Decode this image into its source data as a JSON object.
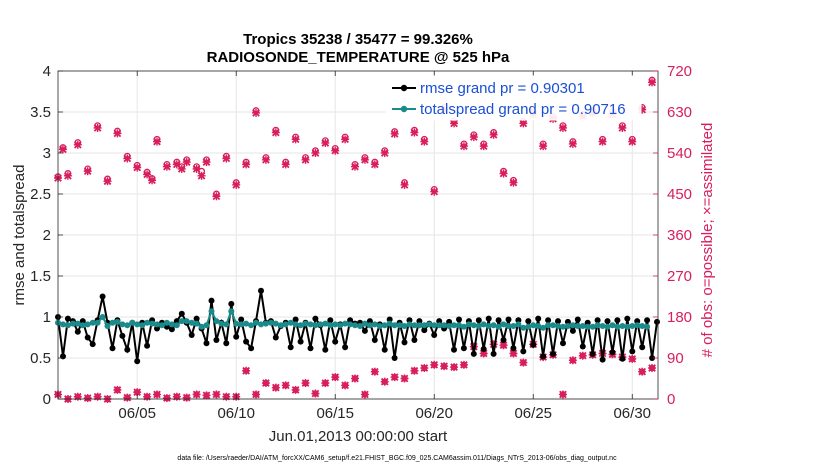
{
  "chart_data": {
    "type": "line",
    "title": "Tropics 35238 / 35477 = 99.326%",
    "subtitle": "RADIOSONDE_TEMPERATURE @ 525 hPa",
    "xlabel": "Jun.01,2013 00:00:00 start",
    "ylabel": "rmse and totalspread",
    "y2label": "# of obs: o=possible; ×=assimilated",
    "footnote": "data file: /Users/raeder/DAI/ATM_forcXX/CAM6_setup/f.e21.FHIST_BGC.f09_025.CAM6assim.011/Diags_NTrS_2013-06/obs_diag_output.nc",
    "xlim": [
      1,
      31.3
    ],
    "ylim": [
      0,
      4
    ],
    "y2lim": [
      0,
      720
    ],
    "x_ticks": [
      5,
      10,
      15,
      20,
      25,
      30
    ],
    "x_tick_labels": [
      "06/05",
      "06/10",
      "06/15",
      "06/20",
      "06/25",
      "06/30"
    ],
    "y_ticks": [
      0,
      0.5,
      1,
      1.5,
      2,
      2.5,
      3,
      3.5,
      4
    ],
    "y_tick_labels": [
      "0",
      "0.5",
      "1",
      "1.5",
      "2",
      "2.5",
      "3",
      "3.5",
      "4"
    ],
    "y2_ticks": [
      0,
      90,
      180,
      270,
      360,
      450,
      540,
      630,
      720
    ],
    "y2_tick_labels": [
      "0",
      "90",
      "180",
      "270",
      "360",
      "450",
      "540",
      "630",
      "720"
    ],
    "x_step": 0.25,
    "x_start": 1.0,
    "series": [
      {
        "name": "rmse grand pr = 0.90301",
        "color": "#000000",
        "marker": "circle",
        "axis": "left",
        "values": [
          1.0,
          0.52,
          0.98,
          0.95,
          0.82,
          0.95,
          0.75,
          0.67,
          0.96,
          1.25,
          0.93,
          0.62,
          0.96,
          0.77,
          0.6,
          0.93,
          0.46,
          0.93,
          0.65,
          0.96,
          0.86,
          0.93,
          0.88,
          0.85,
          0.95,
          1.04,
          0.93,
          0.78,
          0.98,
          0.86,
          0.68,
          1.2,
          0.72,
          0.93,
          0.68,
          1.16,
          0.76,
          0.97,
          0.7,
          0.62,
          0.95,
          1.32,
          0.93,
          0.95,
          0.75,
          0.89,
          0.93,
          0.63,
          0.97,
          0.7,
          0.93,
          0.62,
          0.98,
          0.9,
          0.6,
          0.96,
          0.7,
          0.91,
          0.63,
          0.96,
          0.92,
          0.93,
          0.83,
          0.95,
          0.72,
          0.91,
          0.6,
          0.97,
          0.5,
          0.93,
          0.69,
          0.96,
          0.72,
          0.95,
          0.84,
          0.92,
          0.78,
          0.95,
          0.86,
          0.94,
          0.6,
          0.97,
          0.62,
          0.95,
          0.55,
          0.96,
          0.61,
          0.98,
          0.55,
          0.96,
          0.72,
          0.97,
          0.62,
          0.96,
          0.58,
          0.95,
          0.66,
          0.98,
          0.52,
          0.96,
          0.55,
          0.95,
          0.68,
          0.94,
          0.83,
          0.97,
          0.64,
          0.93,
          0.55,
          0.96,
          0.48,
          0.95,
          0.57,
          0.96,
          0.49,
          0.98,
          0.58,
          0.95,
          0.63,
          0.96,
          0.5,
          0.94
        ]
      },
      {
        "name": "totalspread grand pr = 0.90716",
        "color": "#1a8a8a",
        "marker": "circle",
        "axis": "left",
        "values": [
          0.93,
          0.91,
          0.9,
          0.92,
          0.92,
          0.9,
          0.91,
          0.93,
          0.93,
          1.0,
          0.89,
          0.93,
          0.94,
          0.91,
          0.9,
          0.93,
          0.91,
          0.9,
          0.93,
          0.92,
          0.91,
          0.9,
          0.93,
          0.91,
          0.9,
          0.95,
          0.95,
          0.93,
          0.92,
          0.88,
          0.9,
          1.07,
          0.95,
          0.92,
          0.91,
          1.07,
          0.92,
          0.91,
          0.92,
          0.9,
          0.93,
          0.91,
          0.92,
          0.93,
          0.92,
          0.9,
          0.91,
          0.93,
          0.91,
          0.9,
          0.92,
          0.91,
          0.9,
          0.91,
          0.92,
          0.9,
          0.91,
          0.9,
          0.92,
          0.91,
          0.9,
          0.89,
          0.92,
          0.9,
          0.91,
          0.89,
          0.9,
          0.92,
          0.9,
          0.9,
          0.89,
          0.91,
          0.9,
          0.9,
          0.9,
          0.91,
          0.9,
          0.9,
          0.9,
          0.89,
          0.9,
          0.9,
          0.88,
          0.91,
          0.9,
          0.89,
          0.91,
          0.89,
          0.9,
          0.88,
          0.91,
          0.89,
          0.89,
          0.91,
          0.87,
          0.88,
          0.9,
          0.89,
          0.87,
          0.9,
          0.9,
          0.89,
          0.88,
          0.89,
          0.9,
          0.89,
          0.89,
          0.88,
          0.88,
          0.9,
          0.89,
          0.88,
          0.9,
          0.88,
          0.89,
          0.88,
          0.89,
          0.9,
          0.89,
          0.88
        ]
      }
    ],
    "obs_color": "#d81e5b",
    "obs_possible": {
      "x": [
        1.0,
        1.25,
        1.5,
        2.0,
        2.5,
        3.0,
        3.5,
        4.0,
        4.5,
        5.0,
        5.5,
        5.75,
        6.0,
        6.5,
        7.0,
        7.25,
        7.5,
        8.0,
        8.25,
        8.5,
        9.0,
        9.5,
        10.0,
        10.5,
        11.0,
        11.5,
        12.0,
        12.5,
        13.0,
        13.5,
        14.0,
        14.5,
        15.0,
        15.5,
        16.0,
        16.5,
        17.0,
        17.5,
        18.0,
        18.5,
        19.0,
        19.5,
        20.0,
        20.5,
        21.0,
        21.5,
        22.0,
        22.5,
        23.0,
        23.5,
        24.0,
        24.5,
        25.0,
        25.5,
        26.0,
        26.5,
        27.0,
        27.5,
        28.0,
        28.5,
        29.0,
        29.5,
        30.0,
        30.5,
        31.0
      ],
      "y": [
        488,
        552,
        495,
        563,
        505,
        600,
        483,
        588,
        533,
        513,
        498,
        484,
        570,
        515,
        520,
        510,
        525,
        510,
        500,
        525,
        450,
        533,
        475,
        520,
        633,
        530,
        590,
        520,
        575,
        530,
        545,
        567,
        550,
        575,
        515,
        530,
        520,
        545,
        587,
        475,
        590,
        570,
        460,
        640,
        610,
        560,
        580,
        560,
        585,
        500,
        480,
        610,
        630,
        560,
        620,
        600,
        565,
        625,
        633,
        570,
        630,
        600,
        570,
        640,
        700
      ]
    },
    "obs_assimilated": {
      "x": [
        1.0,
        1.25,
        1.5,
        2.0,
        2.5,
        3.0,
        3.5,
        4.0,
        4.5,
        5.0,
        5.5,
        5.75,
        6.0,
        6.5,
        7.0,
        7.25,
        7.5,
        8.0,
        8.25,
        8.5,
        9.0,
        9.5,
        10.0,
        10.5,
        11.0,
        11.5,
        12.0,
        12.5,
        13.0,
        13.5,
        14.0,
        14.5,
        15.0,
        15.5,
        16.0,
        16.5,
        17.0,
        17.5,
        18.0,
        18.5,
        19.0,
        19.5,
        20.0,
        20.5,
        21.0,
        21.5,
        22.0,
        22.5,
        23.0,
        23.5,
        24.0,
        24.5,
        25.0,
        25.5,
        26.0,
        26.5,
        27.0,
        27.5,
        28.0,
        28.5,
        29.0,
        29.5,
        30.0,
        30.5,
        31.0
      ],
      "y": [
        485,
        548,
        490,
        558,
        500,
        595,
        478,
        583,
        528,
        508,
        493,
        480,
        565,
        510,
        515,
        505,
        520,
        505,
        490,
        520,
        445,
        528,
        470,
        515,
        628,
        525,
        585,
        515,
        570,
        525,
        540,
        562,
        545,
        570,
        510,
        525,
        515,
        540,
        582,
        470,
        585,
        565,
        455,
        635,
        605,
        555,
        575,
        555,
        580,
        495,
        475,
        605,
        625,
        555,
        615,
        595,
        560,
        620,
        628,
        565,
        625,
        595,
        565,
        635,
        695
      ]
    },
    "obs_low": {
      "x": [
        1.0,
        1.5,
        2.0,
        2.5,
        3.0,
        3.5,
        4.0,
        4.5,
        5.0,
        5.5,
        6.0,
        6.5,
        7.0,
        7.5,
        8.0,
        8.5,
        9.0,
        9.5,
        10.0,
        10.5,
        11.0,
        11.5,
        12.0,
        12.5,
        13.0,
        13.5,
        14.0,
        14.5,
        15.0,
        15.5,
        16.0,
        16.5,
        17.0,
        17.5,
        18.0,
        18.5,
        19.0,
        19.5,
        20.0,
        20.5,
        21.0,
        21.5,
        22.0,
        22.5,
        23.0,
        23.5,
        24.0,
        24.5,
        25.0,
        25.5,
        26.0,
        26.5,
        27.0,
        27.5,
        28.0,
        28.5,
        29.0,
        29.5,
        30.0,
        30.5,
        31.0
      ],
      "y": [
        10,
        0,
        5,
        2,
        5,
        0,
        20,
        3,
        15,
        5,
        10,
        2,
        5,
        3,
        10,
        8,
        10,
        5,
        5,
        62,
        10,
        35,
        25,
        30,
        20,
        35,
        12,
        35,
        48,
        30,
        45,
        10,
        60,
        38,
        48,
        45,
        62,
        68,
        75,
        72,
        70,
        75,
        115,
        100,
        120,
        118,
        100,
        80,
        120,
        92,
        97,
        10,
        85,
        95,
        97,
        100,
        98,
        92,
        88,
        60,
        68
      ]
    }
  },
  "legend": {
    "rmse_label": "rmse grand pr = 0.90301",
    "spread_label": "totalspread grand pr = 0.90716"
  }
}
